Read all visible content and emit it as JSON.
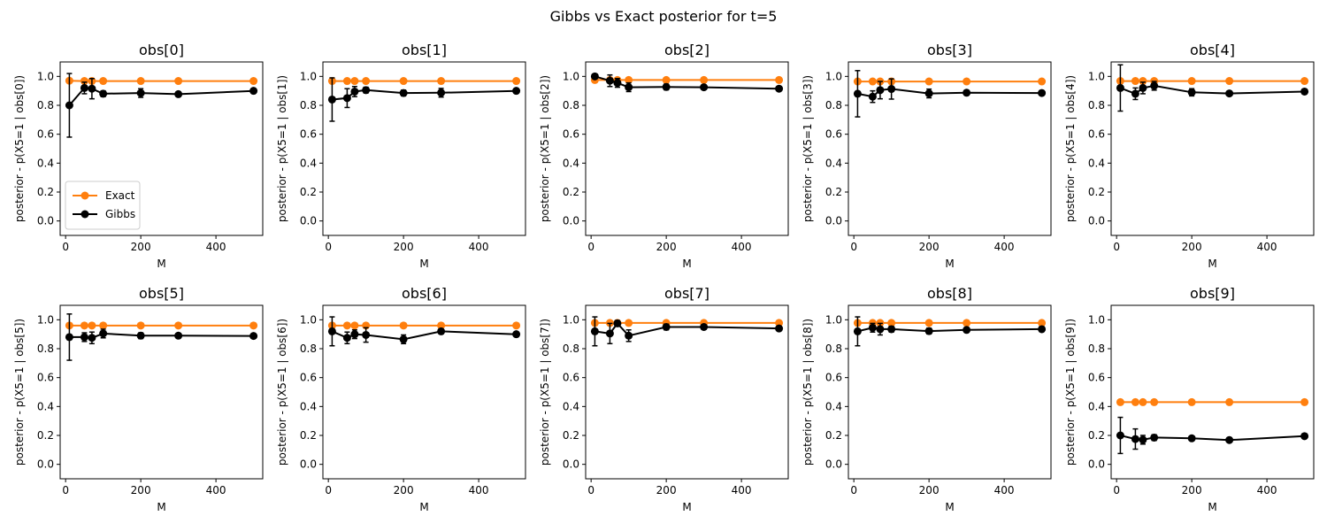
{
  "suptitle": "Gibbs vs Exact posterior for t=5",
  "colors": {
    "exact": "#ff7f0e",
    "gibbs": "#000000"
  },
  "chart_data": [
    {
      "type": "line",
      "title": "obs[0]",
      "xlabel": "M",
      "ylabel": "posterior - p(X5=1 | obs[0])",
      "x": [
        10,
        50,
        70,
        100,
        200,
        300,
        500
      ],
      "xlim": [
        -14.5,
        524.5
      ],
      "ylim": [
        -0.1,
        1.1
      ],
      "xticks": [
        0,
        200,
        400
      ],
      "yticks": [
        0.0,
        0.2,
        0.4,
        0.6,
        0.8,
        1.0
      ],
      "legend": {
        "location": "lower-left",
        "entries": [
          "Exact",
          "Gibbs"
        ]
      },
      "series": [
        {
          "name": "Exact",
          "values": [
            0.97,
            0.968,
            0.968,
            0.968,
            0.968,
            0.968,
            0.968
          ]
        },
        {
          "name": "Gibbs",
          "values": [
            0.8,
            0.92,
            0.915,
            0.88,
            0.885,
            0.877,
            0.9
          ],
          "yerr": [
            0.22,
            0.04,
            0.07,
            0.02,
            0.03,
            0.01,
            0.015
          ]
        }
      ]
    },
    {
      "type": "line",
      "title": "obs[1]",
      "xlabel": "M",
      "ylabel": "posterior - p(X5=1 | obs[1])",
      "x": [
        10,
        50,
        70,
        100,
        200,
        300,
        500
      ],
      "xlim": [
        -14.5,
        524.5
      ],
      "ylim": [
        -0.1,
        1.1
      ],
      "xticks": [
        0,
        200,
        400
      ],
      "yticks": [
        0.0,
        0.2,
        0.4,
        0.6,
        0.8,
        1.0
      ],
      "series": [
        {
          "name": "Exact",
          "values": [
            0.968,
            0.968,
            0.968,
            0.968,
            0.968,
            0.968,
            0.968
          ]
        },
        {
          "name": "Gibbs",
          "values": [
            0.84,
            0.85,
            0.895,
            0.905,
            0.885,
            0.887,
            0.9
          ],
          "yerr": [
            0.15,
            0.065,
            0.035,
            0.02,
            0.02,
            0.03,
            0.015
          ]
        }
      ]
    },
    {
      "type": "line",
      "title": "obs[2]",
      "xlabel": "M",
      "ylabel": "posterior - p(X5=1 | obs[2])",
      "x": [
        10,
        50,
        70,
        100,
        200,
        300,
        500
      ],
      "xlim": [
        -14.5,
        524.5
      ],
      "ylim": [
        -0.1,
        1.1
      ],
      "xticks": [
        0,
        200,
        400
      ],
      "yticks": [
        0.0,
        0.2,
        0.4,
        0.6,
        0.8,
        1.0
      ],
      "series": [
        {
          "name": "Exact",
          "values": [
            0.975,
            0.975,
            0.975,
            0.975,
            0.975,
            0.975,
            0.975
          ]
        },
        {
          "name": "Gibbs",
          "values": [
            1.0,
            0.97,
            0.955,
            0.925,
            0.927,
            0.925,
            0.915
          ],
          "yerr": [
            0.0,
            0.04,
            0.03,
            0.03,
            0.02,
            0.015,
            0.015
          ]
        }
      ]
    },
    {
      "type": "line",
      "title": "obs[3]",
      "xlabel": "M",
      "ylabel": "posterior - p(X5=1 | obs[3])",
      "x": [
        10,
        50,
        70,
        100,
        200,
        300,
        500
      ],
      "xlim": [
        -14.5,
        524.5
      ],
      "ylim": [
        -0.1,
        1.1
      ],
      "xticks": [
        0,
        200,
        400
      ],
      "yticks": [
        0.0,
        0.2,
        0.4,
        0.6,
        0.8,
        1.0
      ],
      "series": [
        {
          "name": "Exact",
          "values": [
            0.965,
            0.965,
            0.965,
            0.965,
            0.965,
            0.965,
            0.965
          ]
        },
        {
          "name": "Gibbs",
          "values": [
            0.88,
            0.86,
            0.905,
            0.913,
            0.882,
            0.887,
            0.885
          ],
          "yerr": [
            0.16,
            0.04,
            0.06,
            0.07,
            0.03,
            0.015,
            0.015
          ]
        }
      ]
    },
    {
      "type": "line",
      "title": "obs[4]",
      "xlabel": "M",
      "ylabel": "posterior - p(X5=1 | obs[4])",
      "x": [
        10,
        50,
        70,
        100,
        200,
        300,
        500
      ],
      "xlim": [
        -14.5,
        524.5
      ],
      "ylim": [
        -0.1,
        1.1
      ],
      "xticks": [
        0,
        200,
        400
      ],
      "yticks": [
        0.0,
        0.2,
        0.4,
        0.6,
        0.8,
        1.0
      ],
      "series": [
        {
          "name": "Exact",
          "values": [
            0.968,
            0.968,
            0.968,
            0.968,
            0.968,
            0.968,
            0.968
          ]
        },
        {
          "name": "Gibbs",
          "values": [
            0.92,
            0.88,
            0.92,
            0.935,
            0.89,
            0.882,
            0.895
          ],
          "yerr": [
            0.16,
            0.04,
            0.04,
            0.03,
            0.025,
            0.015,
            0.015
          ]
        }
      ]
    },
    {
      "type": "line",
      "title": "obs[5]",
      "xlabel": "M",
      "ylabel": "posterior - p(X5=1 | obs[5])",
      "x": [
        10,
        50,
        70,
        100,
        200,
        300,
        500
      ],
      "xlim": [
        -14.5,
        524.5
      ],
      "ylim": [
        -0.1,
        1.1
      ],
      "xticks": [
        0,
        200,
        400
      ],
      "yticks": [
        0.0,
        0.2,
        0.4,
        0.6,
        0.8,
        1.0
      ],
      "series": [
        {
          "name": "Exact",
          "values": [
            0.96,
            0.96,
            0.96,
            0.96,
            0.96,
            0.96,
            0.96
          ]
        },
        {
          "name": "Gibbs",
          "values": [
            0.88,
            0.88,
            0.875,
            0.905,
            0.89,
            0.89,
            0.888
          ],
          "yerr": [
            0.16,
            0.03,
            0.04,
            0.03,
            0.02,
            0.015,
            0.015
          ]
        }
      ]
    },
    {
      "type": "line",
      "title": "obs[6]",
      "xlabel": "M",
      "ylabel": "posterior - p(X5=1 | obs[6])",
      "x": [
        10,
        50,
        70,
        100,
        200,
        300,
        500
      ],
      "xlim": [
        -14.5,
        524.5
      ],
      "ylim": [
        -0.1,
        1.1
      ],
      "xticks": [
        0,
        200,
        400
      ],
      "yticks": [
        0.0,
        0.2,
        0.4,
        0.6,
        0.8,
        1.0
      ],
      "series": [
        {
          "name": "Exact",
          "values": [
            0.96,
            0.96,
            0.96,
            0.96,
            0.96,
            0.96,
            0.96
          ]
        },
        {
          "name": "Gibbs",
          "values": [
            0.92,
            0.875,
            0.9,
            0.895,
            0.865,
            0.92,
            0.9
          ],
          "yerr": [
            0.1,
            0.04,
            0.03,
            0.05,
            0.03,
            0.015,
            0.015
          ]
        }
      ]
    },
    {
      "type": "line",
      "title": "obs[7]",
      "xlabel": "M",
      "ylabel": "posterior - p(X5=1 | obs[7])",
      "x": [
        10,
        50,
        70,
        100,
        200,
        300,
        500
      ],
      "xlim": [
        -14.5,
        524.5
      ],
      "ylim": [
        -0.1,
        1.1
      ],
      "xticks": [
        0,
        200,
        400
      ],
      "yticks": [
        0.0,
        0.2,
        0.4,
        0.6,
        0.8,
        1.0
      ],
      "series": [
        {
          "name": "Exact",
          "values": [
            0.978,
            0.978,
            0.978,
            0.978,
            0.978,
            0.978,
            0.978
          ]
        },
        {
          "name": "Gibbs",
          "values": [
            0.92,
            0.905,
            0.975,
            0.89,
            0.95,
            0.95,
            0.94
          ],
          "yerr": [
            0.1,
            0.07,
            0.02,
            0.04,
            0.02,
            0.015,
            0.015
          ]
        }
      ]
    },
    {
      "type": "line",
      "title": "obs[8]",
      "xlabel": "M",
      "ylabel": "posterior - p(X5=1 | obs[8])",
      "x": [
        10,
        50,
        70,
        100,
        200,
        300,
        500
      ],
      "xlim": [
        -14.5,
        524.5
      ],
      "ylim": [
        -0.1,
        1.1
      ],
      "xticks": [
        0,
        200,
        400
      ],
      "yticks": [
        0.0,
        0.2,
        0.4,
        0.6,
        0.8,
        1.0
      ],
      "series": [
        {
          "name": "Exact",
          "values": [
            0.978,
            0.978,
            0.978,
            0.978,
            0.978,
            0.978,
            0.978
          ]
        },
        {
          "name": "Gibbs",
          "values": [
            0.92,
            0.945,
            0.935,
            0.935,
            0.922,
            0.93,
            0.935
          ],
          "yerr": [
            0.1,
            0.03,
            0.04,
            0.02,
            0.02,
            0.01,
            0.015
          ]
        }
      ]
    },
    {
      "type": "line",
      "title": "obs[9]",
      "xlabel": "M",
      "ylabel": "posterior - p(X5=1 | obs[9])",
      "x": [
        10,
        50,
        70,
        100,
        200,
        300,
        500
      ],
      "xlim": [
        -14.5,
        524.5
      ],
      "ylim": [
        -0.1,
        1.1
      ],
      "xticks": [
        0,
        200,
        400
      ],
      "yticks": [
        0.0,
        0.2,
        0.4,
        0.6,
        0.8,
        1.0
      ],
      "series": [
        {
          "name": "Exact",
          "values": [
            0.43,
            0.43,
            0.43,
            0.43,
            0.43,
            0.43,
            0.43
          ]
        },
        {
          "name": "Gibbs",
          "values": [
            0.2,
            0.175,
            0.17,
            0.185,
            0.18,
            0.168,
            0.195
          ],
          "yerr": [
            0.125,
            0.07,
            0.03,
            0.02,
            0.015,
            0.015,
            0.01
          ]
        }
      ]
    }
  ]
}
